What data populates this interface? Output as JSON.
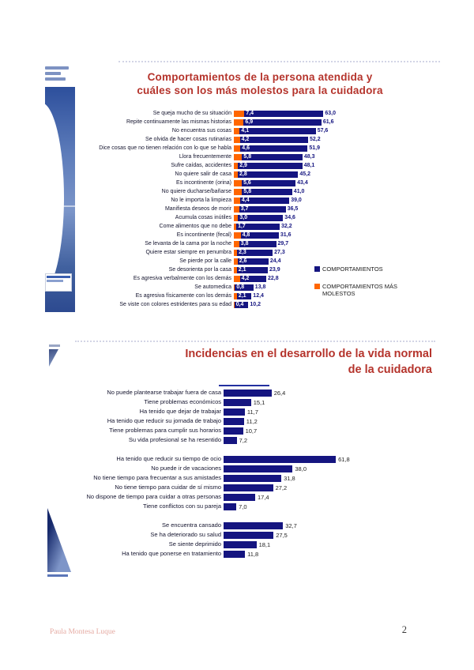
{
  "footer": {
    "author": "Paula Montesa Luque",
    "page_number": "2"
  },
  "chart_data": [
    {
      "type": "bar",
      "orientation": "horizontal",
      "title": "Comportamientos de la persona atendida y cuáles son los más molestos para la cuidadora",
      "title_lines": [
        "Comportamientos de la persona atendida y",
        "cuáles son los más molestos para la cuidadora"
      ],
      "title_color": "#B5342C",
      "value_decimal_separator": "comma",
      "grid": false,
      "xlim": [
        0,
        70
      ],
      "legend_position": "right",
      "legend": [
        {
          "label": "COMPORTAMIENTOS",
          "color": "#151580"
        },
        {
          "label": "COMPORTAMIENTOS MÁS MOLESTOS",
          "color": "#FF6600"
        }
      ],
      "categories": [
        "Se queja mucho de su situación",
        "Repite continuamente las mismas historias",
        "No encuentra sus cosas",
        "Se olvida de hacer cosas rutinarias",
        "Dice cosas que no tienen relación con lo que se habla",
        "Llora frecuentemente",
        "Sufre caídas, accidentes",
        "No quiere salir de casa",
        "Es incontinente (orina)",
        "No quiere ducharse/bañarse",
        "No le importa la limpieza",
        "Manifiesta deseos de morir",
        "Acumula cosas inútiles",
        "Come alimentos que no debe",
        "Es incontinente (fecal)",
        "Se levanta de la cama por la noche",
        "Quiere estar siempre en penumbra",
        "Se pierde por la calle",
        "Se desorienta por la casa",
        "Es agresiva verbalmente con los demás",
        "Se automedica",
        "Es agresiva físicamente con los demás",
        "Se viste con colores estridentes para su edad"
      ],
      "series": [
        {
          "name": "COMPORTAMIENTOS",
          "color": "#151580",
          "values": [
            63.0,
            61.6,
            57.6,
            52.2,
            51.9,
            48.3,
            48.1,
            45.2,
            43.4,
            41.0,
            39.0,
            36.5,
            34.6,
            32.2,
            31.6,
            29.7,
            27.3,
            24.4,
            23.9,
            22.8,
            13.8,
            12.4,
            10.2
          ]
        },
        {
          "name": "COMPORTAMIENTOS MÁS MOLESTOS",
          "color": "#FF6600",
          "values": [
            7.4,
            6.9,
            4.1,
            4.2,
            4.6,
            5.8,
            2.9,
            2.8,
            5.6,
            5.8,
            4.4,
            3.7,
            3.0,
            1.7,
            4.8,
            3.8,
            2.3,
            2.6,
            2.1,
            4.2,
            0.8,
            2.1,
            0.4
          ]
        }
      ]
    },
    {
      "type": "bar",
      "orientation": "horizontal",
      "title": "Incidencias en el desarrollo de la vida normal de la cuidadora",
      "title_lines": [
        "Incidencias en el desarrollo de la vida normal",
        "de la cuidadora"
      ],
      "title_color": "#B5342C",
      "bar_color": "#151580",
      "value_decimal_separator": "comma",
      "grid": false,
      "xlim": [
        0,
        65
      ],
      "groups": [
        {
          "items": [
            {
              "label": "No puede plantearse trabajar fuera de casa",
              "value": 26.4
            },
            {
              "label": "Tiene problemas económicos",
              "value": 15.1
            },
            {
              "label": "Ha tenido que dejar de trabajar",
              "value": 11.7
            },
            {
              "label": "Ha tenido que reducir su jornada de trabajo",
              "value": 11.2
            },
            {
              "label": "Tiene problemas para cumplir sus horarios",
              "value": 10.7
            },
            {
              "label": "Su vida profesional se ha resentido",
              "value": 7.2
            }
          ]
        },
        {
          "items": [
            {
              "label": "Ha tenido que reducir su tiempo de ocio",
              "value": 61.8
            },
            {
              "label": "No puede ir de vacaciones",
              "value": 38.0
            },
            {
              "label": "No tiene tiempo para frecuentar a sus amistades",
              "value": 31.8
            },
            {
              "label": "No tiene tiempo para cuidar de sí mismo",
              "value": 27.2
            },
            {
              "label": "No dispone de tiempo para cuidar a otras personas",
              "value": 17.4
            },
            {
              "label": "Tiene conflictos con su pareja",
              "value": 7.0
            }
          ]
        },
        {
          "items": [
            {
              "label": "Se encuentra cansado",
              "value": 32.7
            },
            {
              "label": "Se ha deteriorado su salud",
              "value": 27.5
            },
            {
              "label": "Se siente deprimido",
              "value": 18.1
            },
            {
              "label": "Ha tenido que ponerse en tratamiento",
              "value": 11.8
            }
          ]
        }
      ]
    }
  ]
}
